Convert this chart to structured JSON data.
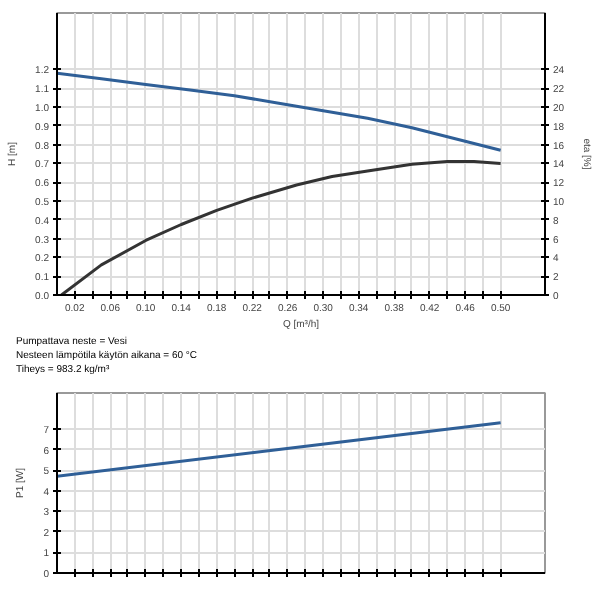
{
  "chart_data": [
    {
      "type": "line",
      "xlabel": "Q [m³/h]",
      "ylabel": "H [m]",
      "y2label": "eta [%]",
      "xlim": [
        0,
        0.55
      ],
      "ylim": [
        0,
        1.5
      ],
      "y2lim": [
        0,
        30
      ],
      "xticks": [
        0.02,
        {
          "value": 0.04,
          "label": null
        },
        0.06,
        {
          "value": 0.08,
          "label": null
        },
        {
          "value": 0.1,
          "label": "0.10"
        },
        {
          "value": 0.12,
          "label": null
        },
        0.14,
        {
          "value": 0.16,
          "label": null
        },
        0.18,
        {
          "value": 0.2,
          "label": null
        },
        0.22,
        {
          "value": 0.24,
          "label": null
        },
        0.26,
        {
          "value": 0.28,
          "label": null
        },
        {
          "value": 0.3,
          "label": "0.30"
        },
        {
          "value": 0.32,
          "label": null
        },
        0.34,
        {
          "value": 0.36,
          "label": null
        },
        0.38,
        {
          "value": 0.4,
          "label": null
        },
        0.42,
        {
          "value": 0.44,
          "label": null
        },
        0.46,
        {
          "value": 0.48,
          "label": null
        },
        {
          "value": 0.5,
          "label": "0.50"
        }
      ],
      "yticks": [
        {
          "value": 0,
          "label": "0.0"
        },
        0.1,
        0.2,
        0.3,
        0.4,
        0.5,
        0.6,
        0.7,
        0.8,
        0.9,
        {
          "value": 1.0,
          "label": "1.0"
        },
        1.1,
        1.2
      ],
      "y2ticks": [
        0,
        2,
        4,
        6,
        8,
        10,
        12,
        14,
        16,
        18,
        20,
        22,
        24
      ],
      "grid": true,
      "line_style": "solid",
      "marker": "none",
      "series": [
        {
          "color": "#2f5f97",
          "x": [
            0,
            0.05,
            0.1,
            0.15,
            0.2,
            0.25,
            0.3,
            0.35,
            0.4,
            0.45,
            0.5
          ],
          "values": [
            1.18,
            1.15,
            1.12,
            1.09,
            1.06,
            1.02,
            0.98,
            0.94,
            0.89,
            0.83,
            0.77
          ]
        },
        {
          "color": "#333333",
          "axis": "y2",
          "x": [
            0.005,
            0.05,
            0.1,
            0.14,
            0.18,
            0.22,
            0.27,
            0.31,
            0.35,
            0.4,
            0.44,
            0.47,
            0.5
          ],
          "values": [
            0,
            3.2,
            5.8,
            7.5,
            9.0,
            10.3,
            11.7,
            12.6,
            13.2,
            13.9,
            14.2,
            14.2,
            14.0
          ]
        }
      ],
      "annotations": [
        "Pumpattava neste = Vesi",
        "Nesteen lämpötila käytön aikana = 60 °C",
        "Tiheys = 983.2 kg/m³"
      ]
    },
    {
      "type": "line",
      "ylabel": "P1 [W]",
      "xlim": [
        0,
        0.55
      ],
      "ylim": [
        0,
        8.75
      ],
      "xticks": [
        {
          "value": 0.02,
          "label": null
        },
        {
          "value": 0.04,
          "label": null
        },
        {
          "value": 0.06,
          "label": null
        },
        {
          "value": 0.08,
          "label": null
        },
        {
          "value": 0.1,
          "label": null
        },
        {
          "value": 0.12,
          "label": null
        },
        {
          "value": 0.14,
          "label": null
        },
        {
          "value": 0.16,
          "label": null
        },
        {
          "value": 0.18,
          "label": null
        },
        {
          "value": 0.2,
          "label": null
        },
        {
          "value": 0.22,
          "label": null
        },
        {
          "value": 0.24,
          "label": null
        },
        {
          "value": 0.26,
          "label": null
        },
        {
          "value": 0.28,
          "label": null
        },
        {
          "value": 0.3,
          "label": null
        },
        {
          "value": 0.32,
          "label": null
        },
        {
          "value": 0.34,
          "label": null
        },
        {
          "value": 0.36,
          "label": null
        },
        {
          "value": 0.38,
          "label": null
        },
        {
          "value": 0.4,
          "label": null
        },
        {
          "value": 0.42,
          "label": null
        },
        {
          "value": 0.44,
          "label": null
        },
        {
          "value": 0.46,
          "label": null
        },
        {
          "value": 0.48,
          "label": null
        },
        {
          "value": 0.5,
          "label": null
        }
      ],
      "yticks": [
        0,
        1,
        2,
        3,
        4,
        5,
        6,
        7
      ],
      "tick_labels": "y",
      "grid": true,
      "line_style": "solid",
      "marker": "none",
      "series": [
        {
          "color": "#2f5f97",
          "x": [
            0,
            0.25,
            0.5
          ],
          "values": [
            4.7,
            6.0,
            7.3
          ]
        }
      ]
    }
  ]
}
